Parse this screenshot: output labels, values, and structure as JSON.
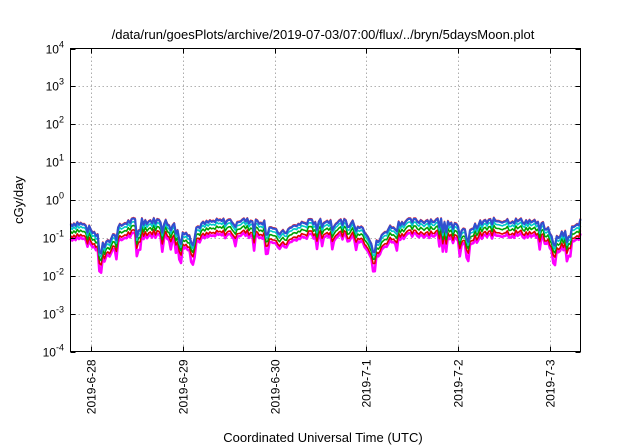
{
  "chart_data": {
    "type": "line",
    "title": "/data/run/goesPlots/archive/2019-07-03/07:00/flux/../bryn/5daysMoon.plot",
    "xlabel": "Coordinated Universal Time (UTC)",
    "ylabel": "cGy/day",
    "yscale": "log",
    "ylim": [
      0.0001,
      10000
    ],
    "xlim": [
      -0.22,
      5.33
    ],
    "x_units": "days since 2019-6-28 00:00 UTC",
    "grid": true,
    "legend": "none",
    "x_tick_labels": [
      "2019-6-28",
      "2019-6-29",
      "2019-6-30",
      "2019-7-1",
      "2019-7-2",
      "2019-7-3"
    ],
    "x_tick_positions": [
      0,
      1,
      2,
      3,
      4,
      5
    ],
    "y_ticks": [
      {
        "base": "10",
        "exp": "-4"
      },
      {
        "base": "10",
        "exp": "-3"
      },
      {
        "base": "10",
        "exp": "-2"
      },
      {
        "base": "10",
        "exp": "-1"
      },
      {
        "base": "10",
        "exp": "0"
      },
      {
        "base": "10",
        "exp": "1"
      },
      {
        "base": "10",
        "exp": "2"
      },
      {
        "base": "10",
        "exp": "3"
      },
      {
        "base": "10",
        "exp": "4"
      }
    ],
    "series": [
      {
        "color": "#ff00ff",
        "scale": 0.42,
        "dipScale": 1.35,
        "width": 2.6
      },
      {
        "color": "#e00000",
        "scale": 0.5,
        "dipScale": 1.0,
        "width": 1.6
      },
      {
        "color": "#00a000",
        "scale": 0.65,
        "dipScale": 1.0,
        "width": 1.6
      },
      {
        "color": "#00c8c8",
        "scale": 0.82,
        "dipScale": 1.0,
        "width": 1.6
      },
      {
        "color": "#ff2222",
        "scale": 1.05,
        "dipScale": 1.0,
        "width": 1.6
      },
      {
        "color": "#3050d0",
        "scale": 1.0,
        "dipScale": 1.0,
        "width": 2.2
      }
    ],
    "baseline_points": [
      [
        -0.22,
        0.23
      ],
      [
        -0.15,
        0.25
      ],
      [
        -0.08,
        0.22
      ],
      [
        -0.02,
        0.18
      ],
      [
        0.05,
        0.13
      ],
      [
        0.1,
        0.08
      ],
      [
        0.15,
        0.06
      ],
      [
        0.2,
        0.08
      ],
      [
        0.26,
        0.13
      ],
      [
        0.32,
        0.2
      ],
      [
        0.38,
        0.25
      ],
      [
        0.45,
        0.28
      ],
      [
        0.55,
        0.3
      ],
      [
        0.62,
        0.27
      ],
      [
        0.7,
        0.29
      ],
      [
        0.8,
        0.27
      ],
      [
        0.88,
        0.24
      ],
      [
        0.95,
        0.18
      ],
      [
        1.0,
        0.14
      ],
      [
        1.05,
        0.12
      ],
      [
        1.12,
        0.16
      ],
      [
        1.2,
        0.22
      ],
      [
        1.3,
        0.26
      ],
      [
        1.45,
        0.28
      ],
      [
        1.6,
        0.29
      ],
      [
        1.75,
        0.28
      ],
      [
        1.88,
        0.27
      ],
      [
        1.95,
        0.2
      ],
      [
        2.0,
        0.15
      ],
      [
        2.08,
        0.13
      ],
      [
        2.15,
        0.16
      ],
      [
        2.25,
        0.22
      ],
      [
        2.35,
        0.26
      ],
      [
        2.5,
        0.28
      ],
      [
        2.65,
        0.27
      ],
      [
        2.8,
        0.26
      ],
      [
        2.92,
        0.22
      ],
      [
        3.0,
        0.14
      ],
      [
        3.05,
        0.08
      ],
      [
        3.1,
        0.07
      ],
      [
        3.15,
        0.09
      ],
      [
        3.22,
        0.16
      ],
      [
        3.3,
        0.22
      ],
      [
        3.4,
        0.27
      ],
      [
        3.55,
        0.28
      ],
      [
        3.7,
        0.29
      ],
      [
        3.85,
        0.28
      ],
      [
        3.95,
        0.24
      ],
      [
        4.0,
        0.17
      ],
      [
        4.08,
        0.15
      ],
      [
        4.15,
        0.18
      ],
      [
        4.25,
        0.25
      ],
      [
        4.35,
        0.28
      ],
      [
        4.5,
        0.29
      ],
      [
        4.65,
        0.28
      ],
      [
        4.8,
        0.27
      ],
      [
        4.92,
        0.22
      ],
      [
        5.0,
        0.14
      ],
      [
        5.05,
        0.1
      ],
      [
        5.1,
        0.12
      ],
      [
        5.18,
        0.15
      ],
      [
        5.25,
        0.22
      ],
      [
        5.33,
        0.27
      ]
    ],
    "dips": [
      [
        0.1,
        0.55
      ],
      [
        0.52,
        0.55
      ],
      [
        0.98,
        0.6
      ],
      [
        1.12,
        0.6
      ],
      [
        1.92,
        0.6
      ],
      [
        3.08,
        0.6
      ],
      [
        4.1,
        0.55
      ],
      [
        5.05,
        0.55
      ],
      [
        5.2,
        0.55
      ]
    ]
  }
}
